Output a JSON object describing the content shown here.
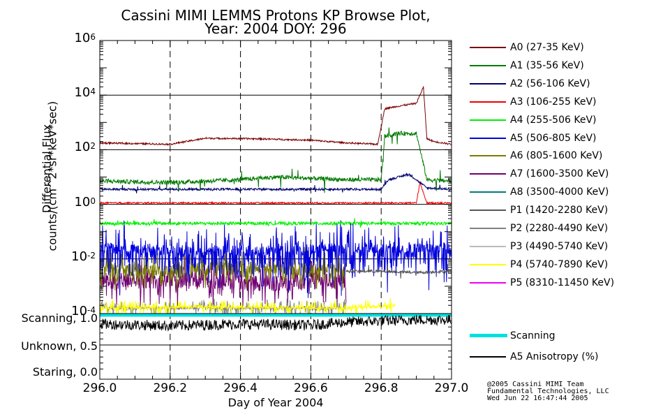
{
  "title_line1": "Cassini MIMI LEMMS Protons KP Browse Plot,",
  "title_line2": "Year: 2004 DOY: 296",
  "ylabel_line1": "Differential Flux",
  "ylabel_line2": "counts/(cm^2*sr*keV*sec)",
  "xlabel": "Day of Year 2004",
  "y_ticks": [
    {
      "base": "10",
      "exp": "6",
      "value": 6
    },
    {
      "base": "10",
      "exp": "4",
      "value": 4
    },
    {
      "base": "10",
      "exp": "2",
      "value": 2
    },
    {
      "base": "10",
      "exp": "0",
      "value": 0
    },
    {
      "base": "10",
      "exp": "-2",
      "value": -2
    },
    {
      "base": "10",
      "exp": "-4",
      "value": -4
    }
  ],
  "x_ticks": [
    "296.0",
    "296.2",
    "296.4",
    "296.6",
    "296.8",
    "297.0"
  ],
  "lower_labels": [
    "Scanning, 1.0",
    "Unknown, 0.5",
    "Staring, 0.0"
  ],
  "legend": [
    {
      "label": "A0 (27-35 KeV)",
      "color": "#7a0000"
    },
    {
      "label": "A1 (35-56 KeV)",
      "color": "#007a00"
    },
    {
      "label": "A2 (56-106 KeV)",
      "color": "#000070"
    },
    {
      "label": "A3 (106-255 KeV)",
      "color": "#ee0000"
    },
    {
      "label": "A4 (255-506 KeV)",
      "color": "#00ee00"
    },
    {
      "label": "A5 (506-805 KeV)",
      "color": "#0000dd"
    },
    {
      "label": "A6 (805-1600 KeV)",
      "color": "#7a7a00"
    },
    {
      "label": "A7 (1600-3500 KeV)",
      "color": "#700070"
    },
    {
      "label": "A8 (3500-4000 KeV)",
      "color": "#007a7a"
    },
    {
      "label": "P1 (1420-2280 KeV)",
      "color": "#555555"
    },
    {
      "label": "P2 (2280-4490 KeV)",
      "color": "#808080"
    },
    {
      "label": "P3 (4490-5740 KeV)",
      "color": "#bbbbbb"
    },
    {
      "label": "P4 (5740-7890 KeV)",
      "color": "#ffff00"
    },
    {
      "label": "P5 (8310-11450 KeV)",
      "color": "#ee00ee"
    }
  ],
  "legend_lower": [
    {
      "label": "Scanning",
      "color": "#00e0e0"
    },
    {
      "label": "A5 Anisotropy (%)",
      "color": "#000000"
    }
  ],
  "credit_line1": "@2005 Cassini MIMI Team",
  "credit_line2": "Fundamental Technologies, LLC",
  "credit_line3": "Wed Jun 22 16:47:44 2005",
  "chart_data": {
    "type": "line",
    "title": "Cassini MIMI LEMMS Protons KP Browse Plot, Year: 2004 DOY: 296",
    "xlabel": "Day of Year 2004",
    "ylabel": "Differential Flux counts/(cm^2*sr*keV*sec)",
    "xlim": [
      296.0,
      297.0
    ],
    "ylim_log10": [
      -4,
      6
    ],
    "yscale": "log",
    "grid": "dashed vertical lines at 296.2, 296.4, 296.6, 296.8; solid horizontal lines at each decade",
    "series": [
      {
        "name": "A0 (27-35 KeV)",
        "color": "#7a0000",
        "x": [
          296.0,
          296.2,
          296.3,
          296.45,
          296.6,
          296.7,
          296.79,
          296.81,
          296.85,
          296.9,
          296.92,
          296.93,
          296.95,
          297.0
        ],
        "y_log10": [
          2.25,
          2.2,
          2.42,
          2.4,
          2.35,
          2.25,
          2.2,
          3.5,
          3.6,
          3.7,
          4.3,
          2.4,
          2.3,
          2.2
        ]
      },
      {
        "name": "A1 (35-56 KeV)",
        "color": "#007a00",
        "x": [
          296.0,
          296.2,
          296.4,
          296.5,
          296.6,
          296.7,
          296.8,
          296.81,
          296.85,
          296.9,
          296.93,
          297.0
        ],
        "y_log10": [
          0.85,
          0.8,
          0.9,
          1.0,
          0.95,
          0.9,
          0.9,
          2.5,
          2.6,
          2.6,
          0.9,
          0.85
        ]
      },
      {
        "name": "A2 (56-106 KeV)",
        "color": "#000070",
        "x": [
          296.0,
          296.4,
          296.8,
          296.82,
          296.88,
          296.93,
          297.0
        ],
        "y_log10": [
          0.55,
          0.55,
          0.55,
          0.9,
          1.1,
          0.6,
          0.55
        ]
      },
      {
        "name": "A3 (106-255 KeV)",
        "color": "#ee0000",
        "x": [
          296.0,
          296.5,
          296.9,
          296.91,
          296.93,
          297.0
        ],
        "y_log10": [
          0.05,
          0.05,
          0.05,
          0.8,
          0.05,
          0.05
        ]
      },
      {
        "name": "A4 (255-506 KeV)",
        "color": "#00ee00",
        "x": [
          296.0,
          296.5,
          297.0
        ],
        "y_log10": [
          -0.7,
          -0.7,
          -0.7
        ]
      },
      {
        "name": "A5 (506-805 KeV)",
        "color": "#0000dd",
        "x": [
          296.0,
          296.3,
          296.5,
          296.7,
          297.0
        ],
        "y_log10": [
          -1.6,
          -1.7,
          -1.7,
          -1.6,
          -1.6
        ]
      },
      {
        "name": "A6 (805-1600 KeV)",
        "color": "#7a7a00",
        "x": [
          296.0,
          296.3,
          296.5,
          296.7
        ],
        "y_log10": [
          -2.4,
          -2.4,
          -2.3,
          -2.4
        ]
      },
      {
        "name": "A7 (1600-3500 KeV)",
        "color": "#700070",
        "x": [
          296.0,
          296.3,
          296.5,
          296.7
        ],
        "y_log10": [
          -2.8,
          -2.8,
          -2.9,
          -2.8
        ]
      },
      {
        "name": "P1 (1420-2280 KeV)",
        "color": "#555555",
        "x": [
          296.7,
          296.8,
          296.9,
          297.0
        ],
        "y_log10": [
          -2.45,
          -2.45,
          -2.5,
          -2.45
        ]
      },
      {
        "name": "P2 (2280-4490 KeV)",
        "color": "#808080",
        "x": [
          296.0,
          296.35,
          296.7
        ],
        "y_log10": [
          -3.8,
          -3.8,
          -3.8
        ]
      },
      {
        "name": "P4 (5740-7890 KeV)",
        "color": "#ffff00",
        "x": [
          296.0,
          296.3,
          296.7,
          296.84
        ],
        "y_log10": [
          -3.8,
          -3.75,
          -3.8,
          -3.7
        ]
      }
    ],
    "lower_panel": {
      "ylabels": [
        "Scanning, 1.0",
        "Unknown, 0.5",
        "Staring, 0.0"
      ],
      "series": [
        {
          "name": "Scanning",
          "color": "#00e0e0",
          "x": [
            296.0,
            297.0
          ],
          "y": [
            1.0,
            1.0
          ]
        },
        {
          "name": "A5 Anisotropy (%)",
          "color": "#000000",
          "x": [
            296.0,
            296.2,
            296.4,
            296.6,
            296.7,
            296.8,
            296.9,
            297.0
          ],
          "y": [
            0.85,
            0.82,
            0.85,
            0.83,
            0.88,
            0.9,
            0.92,
            0.92
          ]
        }
      ]
    }
  }
}
